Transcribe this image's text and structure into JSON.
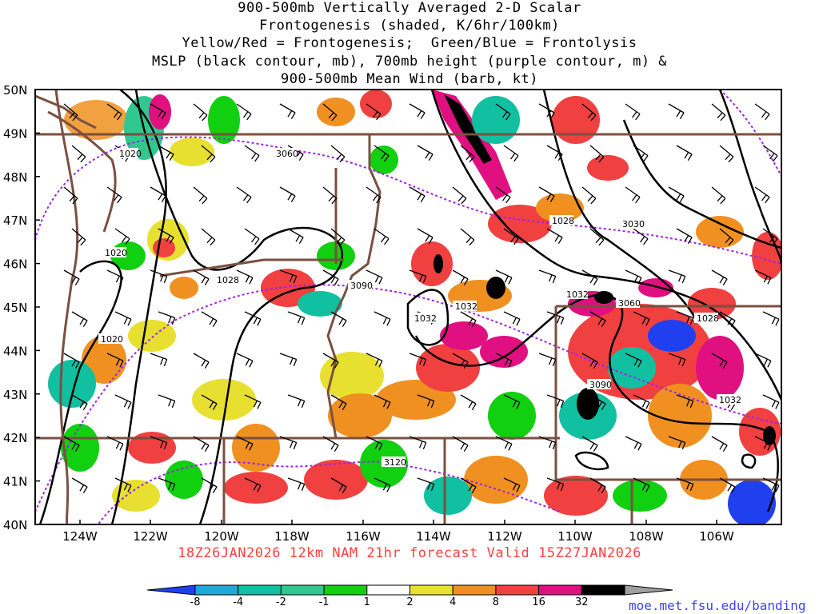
{
  "title": {
    "lines": [
      "900-500mb Vertically Averaged 2-D Scalar",
      "Frontogenesis (shaded, K/6hr/100km)",
      "Yellow/Red = Frontogenesis;  Green/Blue = Frontolysis",
      "MSLP (black contour, mb), 700mb height (purple contour, m) &",
      "900-500mb Mean Wind (barb, kt)"
    ]
  },
  "axes": {
    "lat_labels": [
      "50N",
      "49N",
      "48N",
      "47N",
      "46N",
      "45N",
      "44N",
      "43N",
      "42N",
      "41N",
      "40N"
    ],
    "lon_labels": [
      "124W",
      "122W",
      "120W",
      "118W",
      "116W",
      "114W",
      "112W",
      "110W",
      "108W",
      "106W"
    ]
  },
  "contour_labels": {
    "mslp": [
      "1020",
      "1020",
      "1028",
      "1028",
      "1032",
      "1032",
      "1032",
      "1028",
      "1032",
      "1020"
    ],
    "height": [
      "3060",
      "3030",
      "3090",
      "3060",
      "3090",
      "3120"
    ]
  },
  "footer": "18Z26JAN2026 12km NAM 21hr forecast Valid 15Z27JAN2026",
  "colorbar": {
    "ticks": [
      "-8",
      "-4",
      "-2",
      "-1",
      "1",
      "2",
      "4",
      "8",
      "16",
      "32"
    ],
    "colors": [
      "#2040f0",
      "#1fa8d8",
      "#10c0a0",
      "#30c890",
      "#10d010",
      "#ffffff",
      "#e8e030",
      "#f09020",
      "#f04040",
      "#e01080",
      "#000000",
      "#a0a0a0"
    ]
  },
  "credit": "moe.met.fsu.edu/banding"
}
